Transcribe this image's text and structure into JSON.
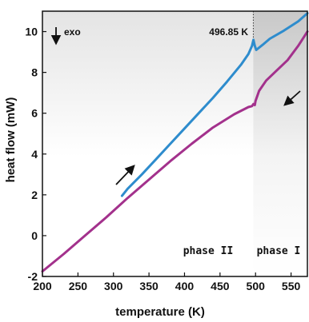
{
  "chart_data": {
    "type": "line",
    "xlabel": "temperature (K)",
    "ylabel": "heat flow (mW)",
    "xlim": [
      200,
      573
    ],
    "ylim": [
      -2,
      11
    ],
    "xticks": [
      200,
      250,
      300,
      350,
      400,
      450,
      500,
      550
    ],
    "yticks": [
      -2,
      0,
      2,
      4,
      6,
      8,
      10
    ],
    "grid": false,
    "series": [
      {
        "color": "#2e8ccd",
        "direction": "heating",
        "points": [
          [
            312,
            1.95
          ],
          [
            320,
            2.3
          ],
          [
            340,
            3.0
          ],
          [
            360,
            3.75
          ],
          [
            380,
            4.5
          ],
          [
            400,
            5.25
          ],
          [
            420,
            6.0
          ],
          [
            440,
            6.75
          ],
          [
            460,
            7.55
          ],
          [
            480,
            8.4
          ],
          [
            490,
            8.9
          ],
          [
            495,
            9.3
          ],
          [
            497,
            9.6
          ],
          [
            499,
            9.3
          ],
          [
            501,
            9.1
          ],
          [
            510,
            9.35
          ],
          [
            520,
            9.65
          ],
          [
            540,
            10.05
          ],
          [
            560,
            10.5
          ],
          [
            573,
            10.9
          ]
        ]
      },
      {
        "color": "#a3318c",
        "direction": "cooling",
        "points": [
          [
            200,
            -1.75
          ],
          [
            230,
            -0.9
          ],
          [
            260,
            0.0
          ],
          [
            290,
            0.9
          ],
          [
            320,
            1.85
          ],
          [
            350,
            2.75
          ],
          [
            380,
            3.65
          ],
          [
            410,
            4.5
          ],
          [
            440,
            5.3
          ],
          [
            470,
            5.95
          ],
          [
            490,
            6.3
          ],
          [
            495,
            6.35
          ],
          [
            497,
            6.45
          ],
          [
            499,
            6.4
          ],
          [
            500,
            6.6
          ],
          [
            505,
            7.1
          ],
          [
            515,
            7.6
          ],
          [
            530,
            8.1
          ],
          [
            545,
            8.6
          ],
          [
            560,
            9.3
          ],
          [
            573,
            10.0
          ]
        ]
      }
    ],
    "annotations": {
      "exo_label": "exo",
      "transition_label": "496.85 K",
      "transition_temp": 496.85,
      "phase_low": "phase II",
      "phase_high": "phase I"
    },
    "shaded_region": [
      496.85,
      573
    ],
    "colors": {
      "heating": "#2e8ccd",
      "cooling": "#a3318c",
      "shade": "#cfcfcf"
    }
  }
}
